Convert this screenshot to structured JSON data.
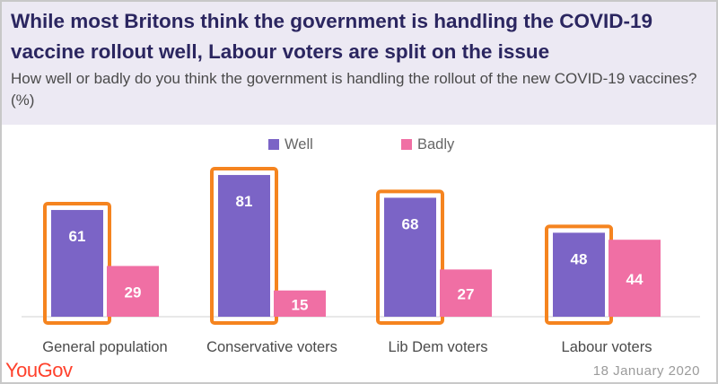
{
  "header": {
    "title": "While most Britons think the government is handling the COVID-19 vaccine rollout well, Labour voters are split on the issue",
    "subtitle": "How well or badly do you think the government is handling the rollout of the new COVID-19 vaccines? (%)"
  },
  "footer": {
    "logo": "YouGov",
    "date": "18 January 2020"
  },
  "colors": {
    "well": "#7b64c6",
    "badly": "#f06fa4",
    "highlight": "#f5841f",
    "header_bg": "#ece9f3",
    "title": "#2b2660",
    "logo": "#ff412c"
  },
  "chart_data": {
    "type": "bar",
    "categories": [
      "General population",
      "Conservative voters",
      "Lib Dem voters",
      "Labour voters"
    ],
    "series": [
      {
        "name": "Well",
        "values": [
          61,
          81,
          68,
          48
        ],
        "color": "#7b64c6"
      },
      {
        "name": "Badly",
        "values": [
          29,
          15,
          27,
          44
        ],
        "color": "#f06fa4"
      }
    ],
    "highlighted_series": "Well",
    "ylim": [
      0,
      100
    ],
    "grid": false,
    "legend": "top-center",
    "data_labels": true
  }
}
